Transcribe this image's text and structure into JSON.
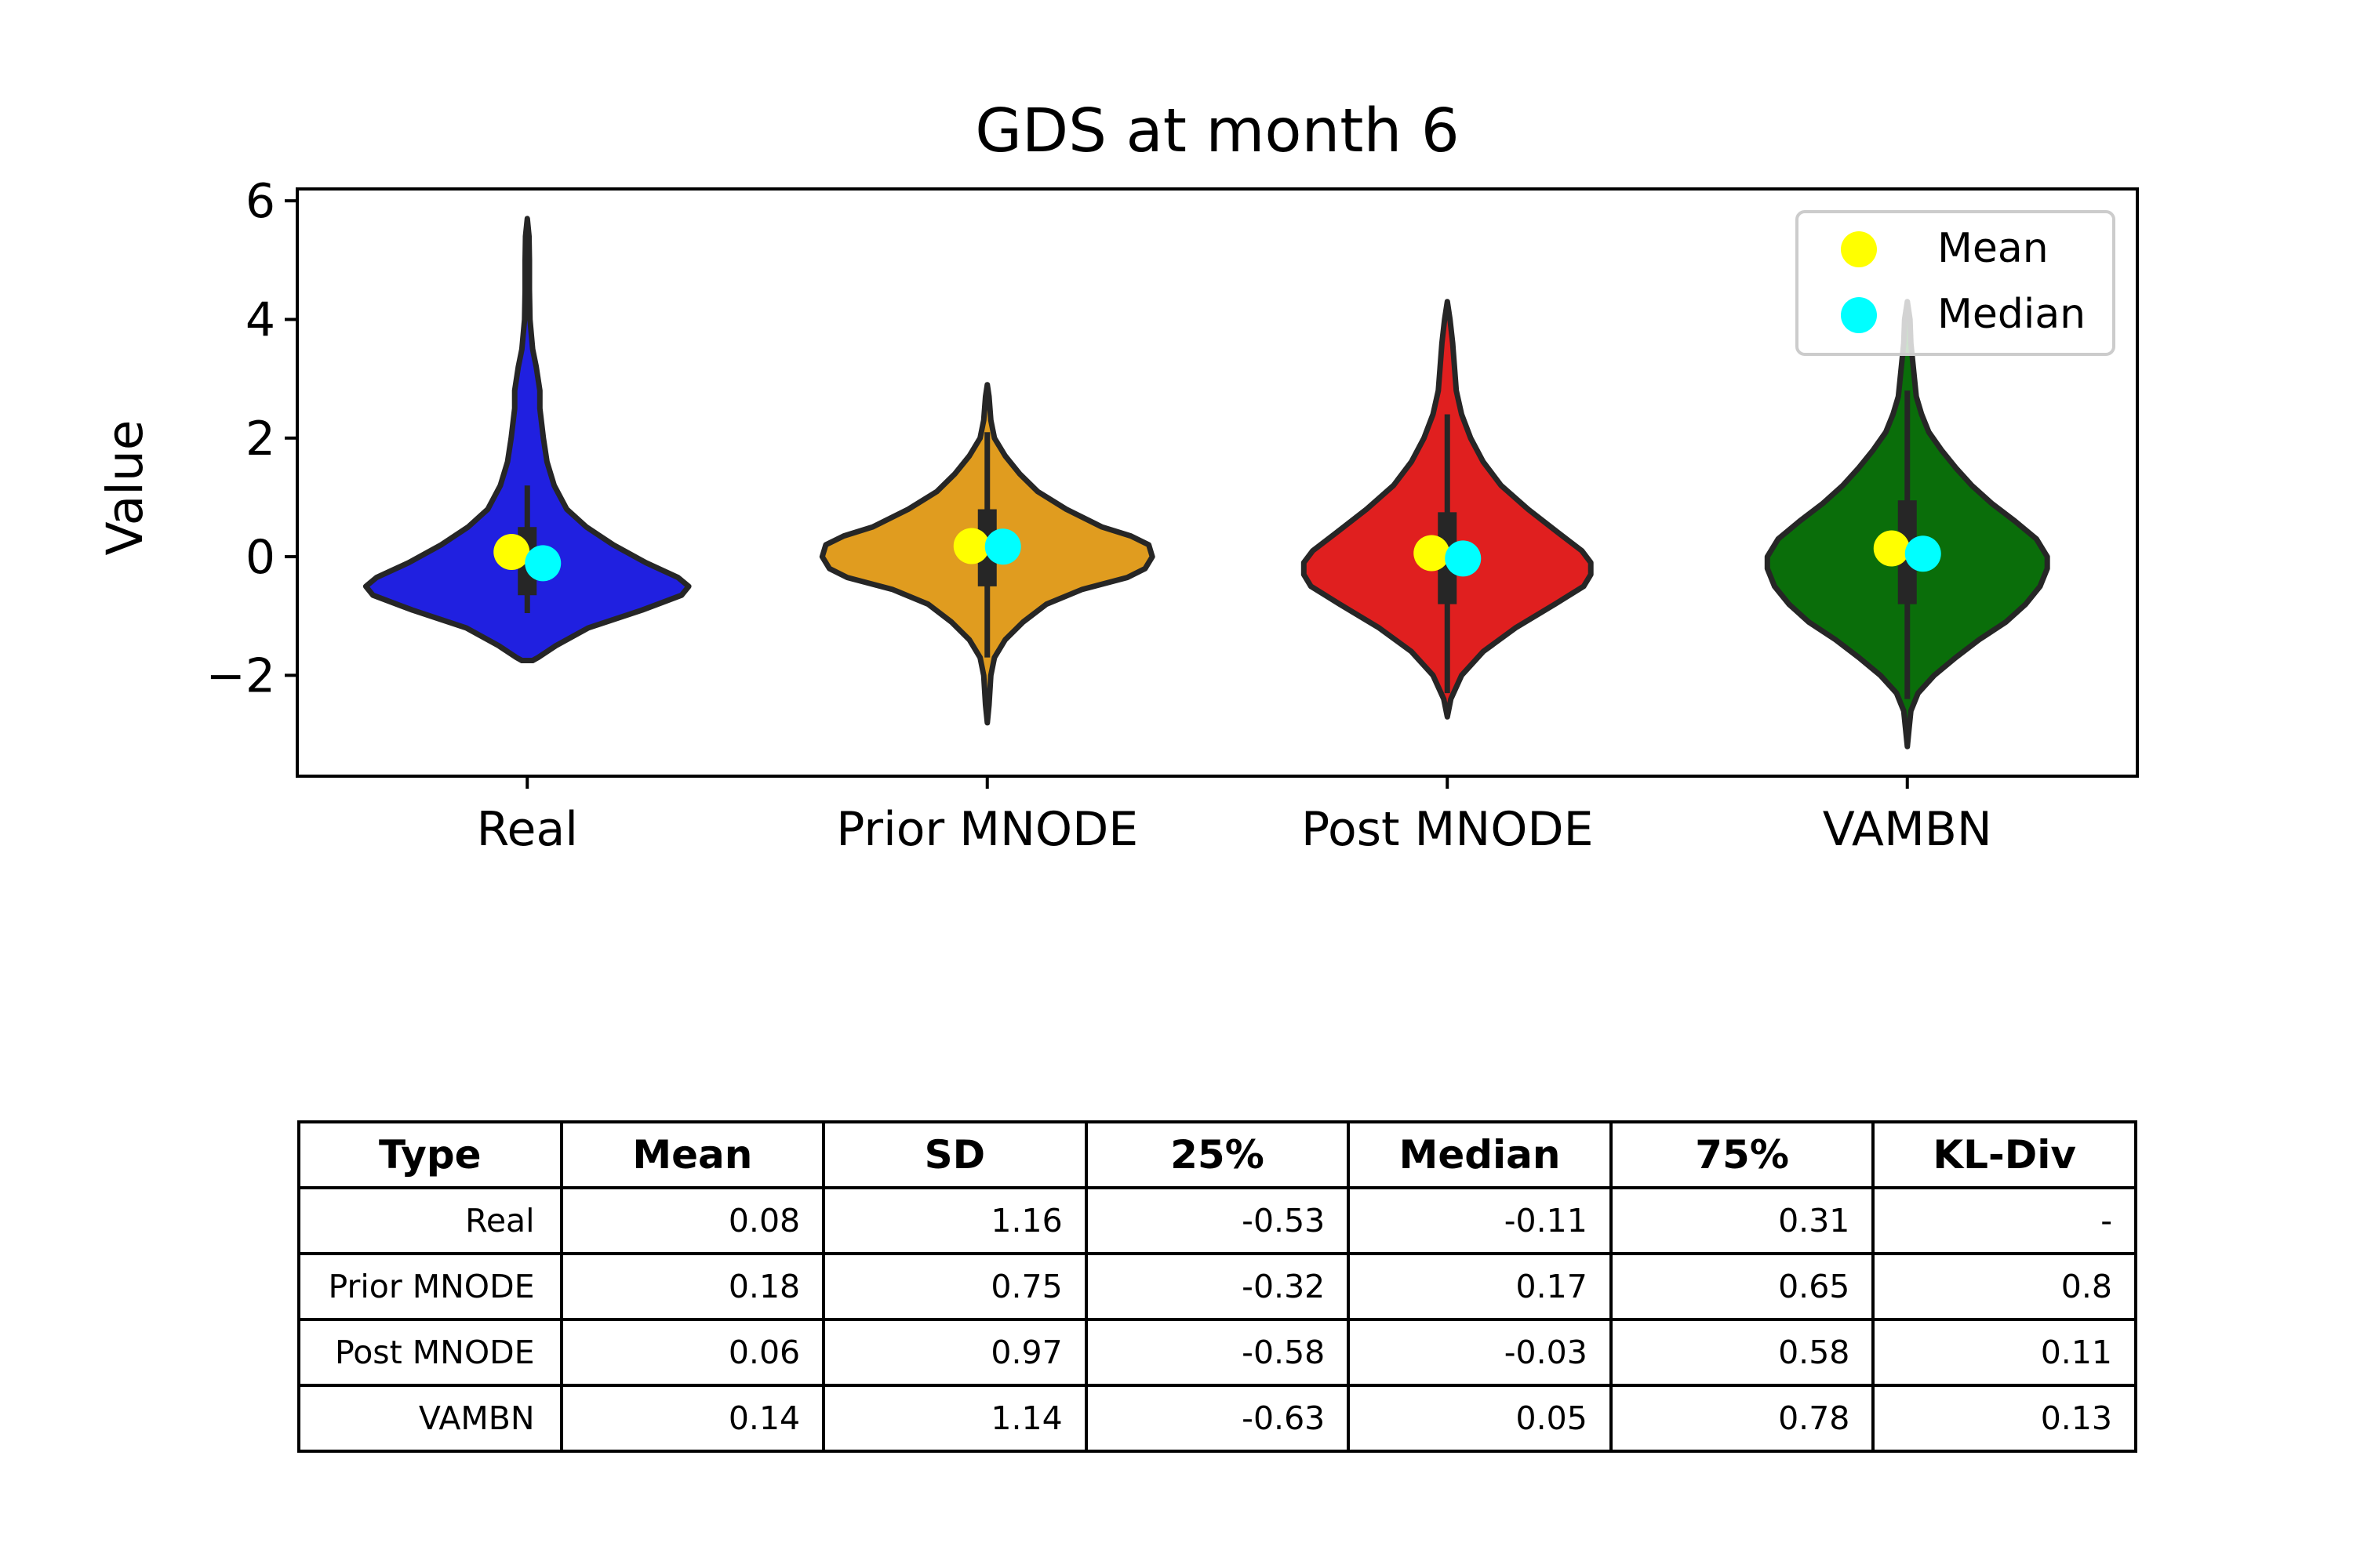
{
  "chart_data": {
    "type": "violin",
    "title": "GDS at month 6",
    "ylabel": "Value",
    "xlabel": "",
    "ylim": [
      -3.7,
      6.2
    ],
    "yticks": [
      -2,
      0,
      2,
      4,
      6
    ],
    "ytick_labels": [
      "−2",
      "0",
      "2",
      "4",
      "6"
    ],
    "categories": [
      "Real",
      "Prior MNODE",
      "Post MNODE",
      "VAMBN"
    ],
    "colors": [
      "#2020e0",
      "#e09c1f",
      "#e01f1f",
      "#0a6e0a"
    ],
    "mean_color": "#ffff00",
    "median_color": "#00ffff",
    "legend": {
      "placement": "top-right",
      "entries": [
        "Mean",
        "Median"
      ]
    },
    "grid": false,
    "violins": [
      {
        "name": "Real",
        "profile": [
          [
            -1.75,
            0.03
          ],
          [
            -1.7,
            0.06
          ],
          [
            -1.5,
            0.16
          ],
          [
            -1.2,
            0.34
          ],
          [
            -0.9,
            0.64
          ],
          [
            -0.65,
            0.86
          ],
          [
            -0.5,
            0.9
          ],
          [
            -0.35,
            0.84
          ],
          [
            -0.1,
            0.66
          ],
          [
            0.2,
            0.48
          ],
          [
            0.5,
            0.33
          ],
          [
            0.8,
            0.22
          ],
          [
            1.2,
            0.15
          ],
          [
            1.6,
            0.11
          ],
          [
            2.0,
            0.09
          ],
          [
            2.5,
            0.07
          ],
          [
            2.8,
            0.07
          ],
          [
            3.2,
            0.05
          ],
          [
            3.5,
            0.03
          ],
          [
            4.0,
            0.015
          ],
          [
            4.5,
            0.012
          ],
          [
            5.0,
            0.012
          ],
          [
            5.4,
            0.01
          ],
          [
            5.7,
            0.0
          ]
        ],
        "whisker": [
          -0.95,
          1.2
        ],
        "box": [
          -0.65,
          0.5
        ],
        "mean": 0.08,
        "median": -0.11
      },
      {
        "name": "Prior MNODE",
        "profile": [
          [
            -2.8,
            0.0
          ],
          [
            -2.5,
            0.01
          ],
          [
            -2.0,
            0.02
          ],
          [
            -1.7,
            0.04
          ],
          [
            -1.4,
            0.1
          ],
          [
            -1.1,
            0.2
          ],
          [
            -0.8,
            0.33
          ],
          [
            -0.55,
            0.53
          ],
          [
            -0.35,
            0.78
          ],
          [
            -0.2,
            0.88
          ],
          [
            0.0,
            0.92
          ],
          [
            0.2,
            0.9
          ],
          [
            0.35,
            0.8
          ],
          [
            0.5,
            0.64
          ],
          [
            0.8,
            0.44
          ],
          [
            1.1,
            0.28
          ],
          [
            1.4,
            0.18
          ],
          [
            1.7,
            0.1
          ],
          [
            2.0,
            0.04
          ],
          [
            2.3,
            0.02
          ],
          [
            2.7,
            0.01
          ],
          [
            2.9,
            0.0
          ]
        ],
        "whisker": [
          -1.7,
          2.1
        ],
        "box": [
          -0.5,
          0.8
        ],
        "mean": 0.18,
        "median": 0.17
      },
      {
        "name": "Post MNODE",
        "profile": [
          [
            -2.7,
            0.0
          ],
          [
            -2.4,
            0.02
          ],
          [
            -2.0,
            0.08
          ],
          [
            -1.6,
            0.2
          ],
          [
            -1.2,
            0.38
          ],
          [
            -0.8,
            0.6
          ],
          [
            -0.5,
            0.76
          ],
          [
            -0.3,
            0.8
          ],
          [
            -0.1,
            0.8
          ],
          [
            0.1,
            0.75
          ],
          [
            0.4,
            0.62
          ],
          [
            0.8,
            0.45
          ],
          [
            1.2,
            0.3
          ],
          [
            1.6,
            0.2
          ],
          [
            2.0,
            0.13
          ],
          [
            2.4,
            0.08
          ],
          [
            2.8,
            0.05
          ],
          [
            3.2,
            0.04
          ],
          [
            3.6,
            0.03
          ],
          [
            4.0,
            0.015
          ],
          [
            4.3,
            0.0
          ]
        ],
        "whisker": [
          -2.3,
          2.4
        ],
        "box": [
          -0.8,
          0.75
        ],
        "mean": 0.06,
        "median": -0.03
      },
      {
        "name": "VAMBN",
        "profile": [
          [
            -3.2,
            0.0
          ],
          [
            -2.9,
            0.01
          ],
          [
            -2.6,
            0.02
          ],
          [
            -2.3,
            0.06
          ],
          [
            -2.0,
            0.15
          ],
          [
            -1.7,
            0.27
          ],
          [
            -1.4,
            0.4
          ],
          [
            -1.1,
            0.55
          ],
          [
            -0.8,
            0.66
          ],
          [
            -0.5,
            0.74
          ],
          [
            -0.2,
            0.78
          ],
          [
            0.0,
            0.78
          ],
          [
            0.3,
            0.72
          ],
          [
            0.6,
            0.6
          ],
          [
            0.9,
            0.47
          ],
          [
            1.2,
            0.36
          ],
          [
            1.5,
            0.27
          ],
          [
            1.8,
            0.19
          ],
          [
            2.1,
            0.12
          ],
          [
            2.4,
            0.08
          ],
          [
            2.7,
            0.05
          ],
          [
            3.0,
            0.04
          ],
          [
            3.3,
            0.03
          ],
          [
            3.6,
            0.02
          ],
          [
            4.0,
            0.015
          ],
          [
            4.3,
            0.0
          ]
        ],
        "whisker": [
          -2.4,
          2.8
        ],
        "box": [
          -0.8,
          0.95
        ],
        "mean": 0.14,
        "median": 0.05
      }
    ]
  },
  "table": {
    "headers": [
      "Type",
      "Mean",
      "SD",
      "25%",
      "Median",
      "75%",
      "KL-Div"
    ],
    "rows": [
      [
        "Real",
        "0.08",
        "1.16",
        "-0.53",
        "-0.11",
        "0.31",
        "-"
      ],
      [
        "Prior MNODE",
        "0.18",
        "0.75",
        "-0.32",
        "0.17",
        "0.65",
        "0.8"
      ],
      [
        "Post MNODE",
        "0.06",
        "0.97",
        "-0.58",
        "-0.03",
        "0.58",
        "0.11"
      ],
      [
        "VAMBN",
        "0.14",
        "1.14",
        "-0.63",
        "0.05",
        "0.78",
        "0.13"
      ]
    ]
  }
}
